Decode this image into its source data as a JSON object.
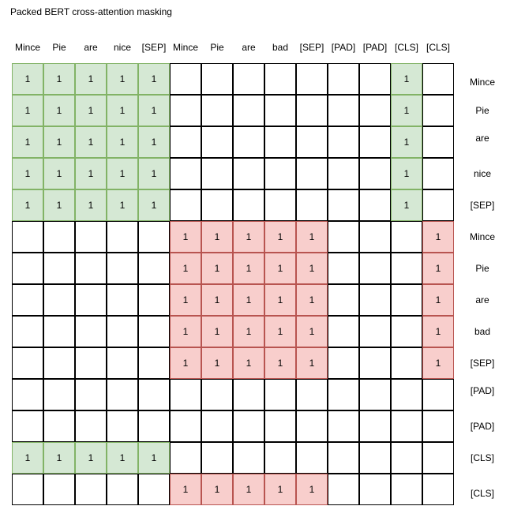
{
  "title": "Packed BERT cross-attention masking",
  "column_labels": [
    "Mince",
    "Pie",
    "are",
    "nice",
    "[SEP]",
    "Mince",
    "Pie",
    "are",
    "bad",
    "[SEP]",
    "[PAD]",
    "[PAD]",
    "[CLS]",
    "[CLS]"
  ],
  "row_labels": [
    "Mince",
    "Pie",
    "are",
    "nice",
    "[SEP]",
    "Mince",
    "Pie",
    "are",
    "bad",
    "[SEP]",
    "[PAD]",
    "[PAD]",
    "[CLS]",
    "[CLS]"
  ],
  "colors": {
    "sequence_1_fill": "#d5e8d4",
    "sequence_1_border": "#82b366",
    "sequence_2_fill": "#f8cecc",
    "sequence_2_border": "#b85450",
    "empty_fill": "#ffffff",
    "empty_border": "#000000"
  },
  "mask": [
    [
      "1",
      "1",
      "1",
      "1",
      "1",
      "",
      "",
      "",
      "",
      "",
      "",
      "",
      "1",
      ""
    ],
    [
      "1",
      "1",
      "1",
      "1",
      "1",
      "",
      "",
      "",
      "",
      "",
      "",
      "",
      "1",
      ""
    ],
    [
      "1",
      "1",
      "1",
      "1",
      "1",
      "",
      "",
      "",
      "",
      "",
      "",
      "",
      "1",
      ""
    ],
    [
      "1",
      "1",
      "1",
      "1",
      "1",
      "",
      "",
      "",
      "",
      "",
      "",
      "",
      "1",
      ""
    ],
    [
      "1",
      "1",
      "1",
      "1",
      "1",
      "",
      "",
      "",
      "",
      "",
      "",
      "",
      "1",
      ""
    ],
    [
      "",
      "",
      "",
      "",
      "",
      "1",
      "1",
      "1",
      "1",
      "1",
      "",
      "",
      "",
      "1"
    ],
    [
      "",
      "",
      "",
      "",
      "",
      "1",
      "1",
      "1",
      "1",
      "1",
      "",
      "",
      "",
      "1"
    ],
    [
      "",
      "",
      "",
      "",
      "",
      "1",
      "1",
      "1",
      "1",
      "1",
      "",
      "",
      "",
      "1"
    ],
    [
      "",
      "",
      "",
      "",
      "",
      "1",
      "1",
      "1",
      "1",
      "1",
      "",
      "",
      "",
      "1"
    ],
    [
      "",
      "",
      "",
      "",
      "",
      "1",
      "1",
      "1",
      "1",
      "1",
      "",
      "",
      "",
      "1"
    ],
    [
      "",
      "",
      "",
      "",
      "",
      "",
      "",
      "",
      "",
      "",
      "",
      "",
      "",
      ""
    ],
    [
      "",
      "",
      "",
      "",
      "",
      "",
      "",
      "",
      "",
      "",
      "",
      "",
      "",
      ""
    ],
    [
      "1",
      "1",
      "1",
      "1",
      "1",
      "",
      "",
      "",
      "",
      "",
      "",
      "",
      "",
      ""
    ],
    [
      "",
      "",
      "",
      "",
      "",
      "1",
      "1",
      "1",
      "1",
      "1",
      "",
      "",
      "",
      ""
    ]
  ],
  "cell_groups": [
    [
      "g",
      "g",
      "g",
      "g",
      "g",
      "",
      "",
      "",
      "",
      "",
      "",
      "",
      "g",
      ""
    ],
    [
      "g",
      "g",
      "g",
      "g",
      "g",
      "",
      "",
      "",
      "",
      "",
      "",
      "",
      "g",
      ""
    ],
    [
      "g",
      "g",
      "g",
      "g",
      "g",
      "",
      "",
      "",
      "",
      "",
      "",
      "",
      "g",
      ""
    ],
    [
      "g",
      "g",
      "g",
      "g",
      "g",
      "",
      "",
      "",
      "",
      "",
      "",
      "",
      "g",
      ""
    ],
    [
      "g",
      "g",
      "g",
      "g",
      "g",
      "",
      "",
      "",
      "",
      "",
      "",
      "",
      "g",
      ""
    ],
    [
      "",
      "",
      "",
      "",
      "",
      "r",
      "r",
      "r",
      "r",
      "r",
      "",
      "",
      "",
      "r"
    ],
    [
      "",
      "",
      "",
      "",
      "",
      "r",
      "r",
      "r",
      "r",
      "r",
      "",
      "",
      "",
      "r"
    ],
    [
      "",
      "",
      "",
      "",
      "",
      "r",
      "r",
      "r",
      "r",
      "r",
      "",
      "",
      "",
      "r"
    ],
    [
      "",
      "",
      "",
      "",
      "",
      "r",
      "r",
      "r",
      "r",
      "r",
      "",
      "",
      "",
      "r"
    ],
    [
      "",
      "",
      "",
      "",
      "",
      "r",
      "r",
      "r",
      "r",
      "r",
      "",
      "",
      "",
      "r"
    ],
    [
      "",
      "",
      "",
      "",
      "",
      "",
      "",
      "",
      "",
      "",
      "",
      "",
      "",
      ""
    ],
    [
      "",
      "",
      "",
      "",
      "",
      "",
      "",
      "",
      "",
      "",
      "",
      "",
      "",
      ""
    ],
    [
      "g",
      "g",
      "g",
      "g",
      "g",
      "",
      "",
      "",
      "",
      "",
      "",
      "",
      "",
      ""
    ],
    [
      "",
      "",
      "",
      "",
      "",
      "r",
      "r",
      "r",
      "r",
      "r",
      "",
      "",
      "",
      ""
    ]
  ]
}
